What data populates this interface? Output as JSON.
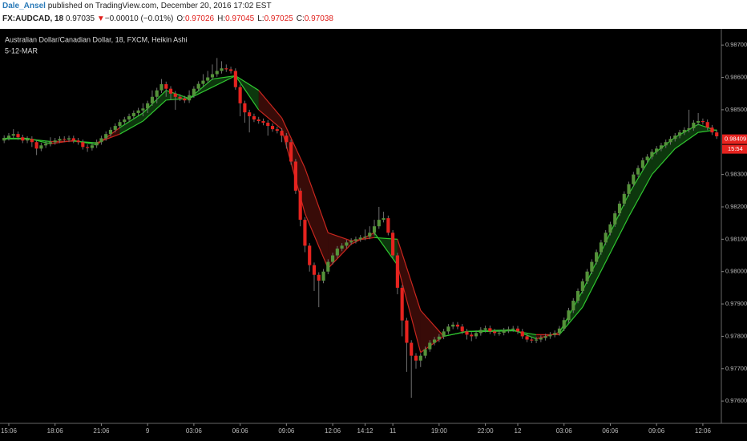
{
  "header": {
    "author": "Dale_Ansel",
    "published": "published on TradingView.com, December 20, 2016 17:02 EST",
    "symbol": "FX:AUDCAD, 18",
    "last": "0.97035",
    "arrow": "▼",
    "change": "−0.00010 (−0.01%)",
    "quote": [
      {
        "label": "O:",
        "value": "0.97026"
      },
      {
        "label": "H:",
        "value": "0.97045"
      },
      {
        "label": "L:",
        "value": "0.97025"
      },
      {
        "label": "C:",
        "value": "0.97038"
      }
    ]
  },
  "chart_data": {
    "type": "candlestick",
    "title": "Australian Dollar/Canadian Dollar, 18, FXCM, Heikin Ashi",
    "up_color": "#55923a",
    "down_color": "#e5231f",
    "wick_color": "#707070",
    "xlim": [
      -0.9,
      155
    ],
    "xticks": [
      {
        "value": 1,
        "label": "15:06"
      },
      {
        "value": 11,
        "label": "18:06"
      },
      {
        "value": 21,
        "label": "21:06"
      },
      {
        "value": 31,
        "label": "9"
      },
      {
        "value": 41,
        "label": "03:06"
      },
      {
        "value": 51,
        "label": "06:06"
      },
      {
        "value": 61,
        "label": "09:06"
      },
      {
        "value": 71,
        "label": "12:06"
      },
      {
        "value": 78,
        "label": "14:12"
      },
      {
        "value": 84,
        "label": "11"
      },
      {
        "value": 94,
        "label": "19:00"
      },
      {
        "value": 104,
        "label": "22:00"
      },
      {
        "value": 111,
        "label": "12"
      },
      {
        "value": 121,
        "label": "03:06"
      },
      {
        "value": 131,
        "label": "06:06"
      },
      {
        "value": 141,
        "label": "09:06"
      },
      {
        "value": 151,
        "label": "12:06"
      }
    ],
    "ylim": [
      0.97531,
      0.9875
    ],
    "yticks": [
      {
        "value": 0.976,
        "label": "0.97600"
      },
      {
        "value": 0.977,
        "label": "0.97700"
      },
      {
        "value": 0.978,
        "label": "0.97800"
      },
      {
        "value": 0.979,
        "label": "0.97900"
      },
      {
        "value": 0.98,
        "label": "0.98000"
      },
      {
        "value": 0.981,
        "label": "0.98100"
      },
      {
        "value": 0.982,
        "label": "0.98200"
      },
      {
        "value": 0.983,
        "label": "0.98300"
      },
      {
        "value": 0.985,
        "label": "0.98500"
      },
      {
        "value": 0.986,
        "label": "0.98600"
      },
      {
        "value": 0.987,
        "label": "0.98700"
      }
    ],
    "last_price": 0.98409,
    "countdown": "15:54",
    "open": [
      0.98405,
      0.98413,
      0.9842,
      0.98425,
      0.98415,
      0.98405,
      0.9841,
      0.984,
      0.9838,
      0.9839,
      0.98395,
      0.984,
      0.98405,
      0.9841,
      0.98408,
      0.98412,
      0.98405,
      0.984,
      0.98385,
      0.98382,
      0.9839,
      0.984,
      0.98412,
      0.98425,
      0.98438,
      0.9845,
      0.98462,
      0.9847,
      0.9848,
      0.9849,
      0.98498,
      0.98504,
      0.9852,
      0.9854,
      0.9856,
      0.98579,
      0.98565,
      0.9855,
      0.9854,
      0.98535,
      0.98529,
      0.98545,
      0.98565,
      0.9858,
      0.9859,
      0.986,
      0.9861,
      0.9862,
      0.98628,
      0.98625,
      0.9862,
      0.9857,
      0.9852,
      0.98492,
      0.9848,
      0.9847,
      0.98465,
      0.9846,
      0.9845,
      0.9844,
      0.98435,
      0.9842,
      0.984,
      0.9834,
      0.9825,
      0.9816,
      0.9808,
      0.9802,
      0.9799,
      0.97972,
      0.98,
      0.9803,
      0.9805,
      0.98071,
      0.9808,
      0.9809,
      0.98095,
      0.981,
      0.98105,
      0.98108,
      0.9812,
      0.9814,
      0.9816,
      0.98165,
      0.9812,
      0.9805,
      0.9795,
      0.97849,
      0.9778,
      0.9774,
      0.97725,
      0.9774,
      0.9776,
      0.9778,
      0.9779,
      0.97799,
      0.97815,
      0.9783,
      0.97836,
      0.9783,
      0.97815,
      0.97805,
      0.978,
      0.9781,
      0.9782,
      0.97825,
      0.97815,
      0.9781,
      0.97811,
      0.97818,
      0.97822,
      0.97824,
      0.97815,
      0.978,
      0.9779,
      0.97787,
      0.9779,
      0.97795,
      0.978,
      0.97805,
      0.9781,
      0.97824,
      0.9785,
      0.9788,
      0.9791,
      0.9794,
      0.9797,
      0.98,
      0.9803,
      0.9806,
      0.9809,
      0.9812,
      0.98146,
      0.9818,
      0.9821,
      0.9824,
      0.9827,
      0.983,
      0.9832,
      0.98344,
      0.98355,
      0.9837,
      0.9838,
      0.9839,
      0.984,
      0.9841,
      0.9842,
      0.9843,
      0.98438,
      0.98443,
      0.9846,
      0.98465,
      0.98462,
      0.98445,
      0.9843
    ],
    "high": [
      0.98421,
      0.98428,
      0.9844,
      0.98433,
      0.98423,
      0.98418,
      0.98418,
      0.98408,
      0.98398,
      0.98403,
      0.98415,
      0.98413,
      0.98418,
      0.98418,
      0.9842,
      0.9842,
      0.98413,
      0.98408,
      0.98393,
      0.98398,
      0.98408,
      0.9842,
      0.98433,
      0.98446,
      0.98458,
      0.9847,
      0.98478,
      0.98488,
      0.98498,
      0.98506,
      0.9852,
      0.98528,
      0.9856,
      0.98568,
      0.98595,
      0.98587,
      0.98573,
      0.98558,
      0.98548,
      0.98543,
      0.9856,
      0.98573,
      0.98588,
      0.9861,
      0.9862,
      0.9864,
      0.9866,
      0.9865,
      0.9864,
      0.98633,
      0.98628,
      0.98578,
      0.98528,
      0.985,
      0.98488,
      0.98478,
      0.98473,
      0.98468,
      0.98458,
      0.98448,
      0.98443,
      0.98428,
      0.98408,
      0.98348,
      0.98258,
      0.98168,
      0.98088,
      0.98028,
      0.97998,
      0.98008,
      0.98038,
      0.98058,
      0.98079,
      0.98088,
      0.98098,
      0.98103,
      0.98108,
      0.98113,
      0.9813,
      0.9814,
      0.9816,
      0.982,
      0.98185,
      0.98173,
      0.98128,
      0.98058,
      0.97958,
      0.97857,
      0.97788,
      0.97748,
      0.97748,
      0.97768,
      0.97788,
      0.97798,
      0.97807,
      0.97823,
      0.97838,
      0.97844,
      0.97844,
      0.97838,
      0.97823,
      0.97813,
      0.97818,
      0.97828,
      0.97833,
      0.97833,
      0.97823,
      0.97819,
      0.97826,
      0.9783,
      0.97832,
      0.97832,
      0.97823,
      0.97808,
      0.97798,
      0.97798,
      0.97803,
      0.97808,
      0.97813,
      0.97818,
      0.97832,
      0.97858,
      0.97888,
      0.97918,
      0.97948,
      0.97978,
      0.98008,
      0.98038,
      0.98068,
      0.98098,
      0.98128,
      0.98154,
      0.98188,
      0.98218,
      0.98248,
      0.98278,
      0.98308,
      0.98328,
      0.98352,
      0.98363,
      0.98378,
      0.98388,
      0.98398,
      0.98408,
      0.98418,
      0.98428,
      0.98438,
      0.98446,
      0.985,
      0.98468,
      0.9849,
      0.98473,
      0.9847,
      0.98453,
      0.98438
    ],
    "low": [
      0.98397,
      0.98405,
      0.98412,
      0.98407,
      0.98397,
      0.98397,
      0.98385,
      0.9836,
      0.98372,
      0.98382,
      0.98387,
      0.98392,
      0.98397,
      0.984,
      0.984,
      0.98397,
      0.98392,
      0.98377,
      0.9837,
      0.98374,
      0.98382,
      0.98392,
      0.98404,
      0.98417,
      0.9843,
      0.98442,
      0.98454,
      0.98462,
      0.98472,
      0.98482,
      0.9848,
      0.9849,
      0.98512,
      0.9852,
      0.98552,
      0.9854,
      0.9853,
      0.985,
      0.98527,
      0.98521,
      0.98521,
      0.98537,
      0.98557,
      0.98572,
      0.98582,
      0.98592,
      0.98602,
      0.98612,
      0.98617,
      0.98612,
      0.98562,
      0.9848,
      0.9846,
      0.9843,
      0.98462,
      0.98457,
      0.98452,
      0.9842,
      0.98432,
      0.98427,
      0.984,
      0.9838,
      0.9833,
      0.9824,
      0.9814,
      0.9806,
      0.98,
      0.9794,
      0.9789,
      0.97964,
      0.97992,
      0.98022,
      0.98042,
      0.98063,
      0.98072,
      0.98082,
      0.98087,
      0.98092,
      0.98097,
      0.981,
      0.98112,
      0.98132,
      0.98152,
      0.98112,
      0.98042,
      0.9793,
      0.978,
      0.9769,
      0.9761,
      0.977,
      0.97705,
      0.97732,
      0.97752,
      0.97772,
      0.97782,
      0.97791,
      0.97807,
      0.97822,
      0.97822,
      0.97807,
      0.9779,
      0.97785,
      0.97792,
      0.97802,
      0.97812,
      0.97807,
      0.97802,
      0.97802,
      0.97803,
      0.9781,
      0.97814,
      0.97807,
      0.97792,
      0.97782,
      0.97779,
      0.97779,
      0.97782,
      0.97787,
      0.97792,
      0.97797,
      0.97802,
      0.97816,
      0.97842,
      0.97872,
      0.97902,
      0.97932,
      0.97962,
      0.97992,
      0.98022,
      0.98052,
      0.98082,
      0.98112,
      0.98138,
      0.98172,
      0.98202,
      0.98232,
      0.98262,
      0.98292,
      0.98312,
      0.98336,
      0.98347,
      0.98362,
      0.98372,
      0.98382,
      0.98392,
      0.98402,
      0.98412,
      0.98422,
      0.9843,
      0.98435,
      0.98452,
      0.98454,
      0.98437,
      0.98422,
      0.9841
    ],
    "close": [
      0.98413,
      0.9842,
      0.98425,
      0.98415,
      0.98405,
      0.9841,
      0.984,
      0.9838,
      0.9839,
      0.98395,
      0.984,
      0.98405,
      0.9841,
      0.98408,
      0.98412,
      0.98405,
      0.984,
      0.98385,
      0.98382,
      0.9839,
      0.984,
      0.98412,
      0.98425,
      0.98438,
      0.9845,
      0.98462,
      0.9847,
      0.9848,
      0.9849,
      0.98498,
      0.98504,
      0.9852,
      0.9854,
      0.9856,
      0.98579,
      0.98565,
      0.9855,
      0.9854,
      0.98535,
      0.98529,
      0.98545,
      0.98565,
      0.9858,
      0.9859,
      0.986,
      0.9861,
      0.9862,
      0.98628,
      0.98625,
      0.9862,
      0.9857,
      0.9852,
      0.98492,
      0.9848,
      0.9847,
      0.98465,
      0.9846,
      0.9845,
      0.9844,
      0.98435,
      0.9842,
      0.984,
      0.9834,
      0.9825,
      0.9816,
      0.9808,
      0.9802,
      0.9799,
      0.97972,
      0.98,
      0.9803,
      0.9805,
      0.98071,
      0.9808,
      0.9809,
      0.98095,
      0.981,
      0.98105,
      0.98108,
      0.9812,
      0.9814,
      0.9816,
      0.98165,
      0.9812,
      0.9805,
      0.9795,
      0.97849,
      0.9778,
      0.9774,
      0.97725,
      0.9774,
      0.9776,
      0.9778,
      0.9779,
      0.97799,
      0.97815,
      0.9783,
      0.97836,
      0.9783,
      0.97815,
      0.97805,
      0.978,
      0.9781,
      0.9782,
      0.97825,
      0.97815,
      0.9781,
      0.97811,
      0.97818,
      0.97822,
      0.97824,
      0.97815,
      0.978,
      0.9779,
      0.97787,
      0.9779,
      0.97795,
      0.978,
      0.97805,
      0.9781,
      0.97824,
      0.9785,
      0.9788,
      0.9791,
      0.9794,
      0.9797,
      0.98,
      0.9803,
      0.9806,
      0.9809,
      0.9812,
      0.98146,
      0.9818,
      0.9821,
      0.9824,
      0.9827,
      0.983,
      0.9832,
      0.98344,
      0.98355,
      0.9837,
      0.9838,
      0.9839,
      0.984,
      0.9841,
      0.9842,
      0.9843,
      0.98438,
      0.98443,
      0.9846,
      0.98465,
      0.98462,
      0.98445,
      0.9843,
      0.98418
    ],
    "ribbon": {
      "name": "5-12-MAR",
      "up_color": "#2fc62f",
      "down_color": "#c8261e",
      "x": [
        0,
        5,
        10,
        15,
        20,
        25,
        30,
        35,
        40,
        45,
        50,
        55,
        60,
        65,
        70,
        75,
        80,
        85,
        90,
        95,
        100,
        105,
        110,
        115,
        120,
        125,
        130,
        135,
        140,
        145,
        150,
        154
      ],
      "fast": [
        0.98412,
        0.98412,
        0.98395,
        0.98405,
        0.98392,
        0.98445,
        0.9849,
        0.9856,
        0.98535,
        0.98595,
        0.98605,
        0.985,
        0.9844,
        0.9818,
        0.9801,
        0.98085,
        0.9812,
        0.9802,
        0.9775,
        0.978,
        0.97815,
        0.97818,
        0.9782,
        0.97792,
        0.97812,
        0.9794,
        0.9809,
        0.9824,
        0.9836,
        0.98415,
        0.98455,
        0.98435
      ],
      "slow": [
        0.9841,
        0.9841,
        0.98402,
        0.98403,
        0.98398,
        0.98425,
        0.98465,
        0.9853,
        0.98535,
        0.9857,
        0.98605,
        0.9856,
        0.98475,
        0.9832,
        0.9812,
        0.98095,
        0.98105,
        0.981,
        0.9788,
        0.978,
        0.97815,
        0.97815,
        0.97817,
        0.97805,
        0.97805,
        0.9789,
        0.9803,
        0.9817,
        0.983,
        0.9838,
        0.9843,
        0.98438
      ]
    }
  }
}
